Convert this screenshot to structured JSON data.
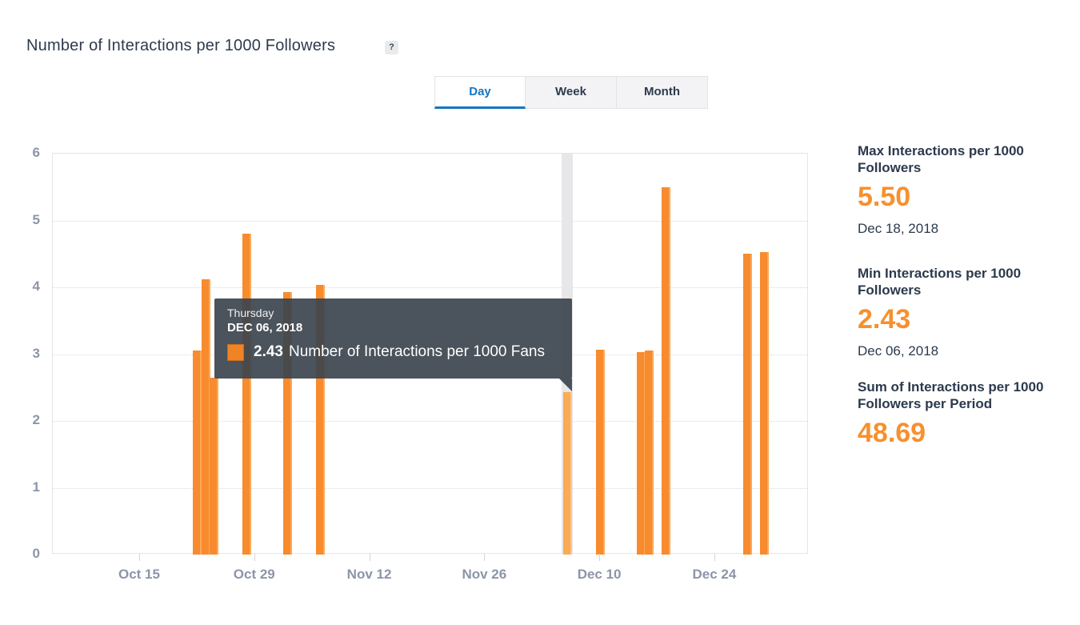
{
  "page": {
    "title": "Number of Interactions per 1000 Followers",
    "help_icon": "?"
  },
  "tabs": [
    {
      "label": "Day",
      "active": true
    },
    {
      "label": "Week",
      "active": false
    },
    {
      "label": "Month",
      "active": false
    }
  ],
  "colors": {
    "bar_orange": "#f78b2e",
    "bar_hover_orange": "#fbaa55",
    "stat_orange": "#f7902d",
    "tab_active_blue": "#1576c2",
    "tooltip_bg": "#3c444e",
    "axis_text": "#8c95a8",
    "heading_text": "#2c3a4d",
    "highlight_band": "#e7e7e9"
  },
  "chart_data": {
    "type": "bar",
    "title": "Number of Interactions per 1000 Followers",
    "xlabel": "",
    "ylabel": "",
    "ylim": [
      0,
      6
    ],
    "y_ticks": [
      0,
      1,
      2,
      3,
      4,
      5,
      6
    ],
    "grid": "horizontal-dotted",
    "legend": "none",
    "x_ticks": [
      {
        "label": "Oct 15",
        "day_index": 0
      },
      {
        "label": "Oct 29",
        "day_index": 14
      },
      {
        "label": "Nov 12",
        "day_index": 28
      },
      {
        "label": "Nov 26",
        "day_index": 42
      },
      {
        "label": "Dec 10",
        "day_index": 56
      },
      {
        "label": "Dec 24",
        "day_index": 70
      }
    ],
    "series": [
      {
        "name": "Number of Interactions per 1000 Fans",
        "points": [
          {
            "date": "Oct 22, 2018",
            "day_index": 7,
            "value": 3.05
          },
          {
            "date": "Oct 23, 2018",
            "day_index": 8,
            "value": 4.12
          },
          {
            "date": "Oct 24, 2018",
            "day_index": 9,
            "value": 2.65
          },
          {
            "date": "Oct 28, 2018",
            "day_index": 13,
            "value": 4.8
          },
          {
            "date": "Nov 02, 2018",
            "day_index": 18,
            "value": 3.93
          },
          {
            "date": "Nov 06, 2018",
            "day_index": 22,
            "value": 4.03
          },
          {
            "date": "Dec 06, 2018",
            "day_index": 52,
            "value": 2.43,
            "hovered": true
          },
          {
            "date": "Dec 10, 2018",
            "day_index": 56,
            "value": 3.07
          },
          {
            "date": "Dec 15, 2018",
            "day_index": 61,
            "value": 3.03
          },
          {
            "date": "Dec 16, 2018",
            "day_index": 62,
            "value": 3.05
          },
          {
            "date": "Dec 18, 2018",
            "day_index": 64,
            "value": 5.5
          },
          {
            "date": "Dec 28, 2018",
            "day_index": 74,
            "value": 4.5
          },
          {
            "date": "Dec 30, 2018",
            "day_index": 76,
            "value": 4.53
          }
        ]
      }
    ],
    "highlighted_point": {
      "date": "Dec 06, 2018",
      "value": 2.43
    }
  },
  "tooltip": {
    "weekday": "Thursday",
    "date": "DEC 06, 2018",
    "value": "2.43",
    "label": "Number of Interactions per 1000 Fans"
  },
  "stats": [
    {
      "title": "Max Interactions per 1000 Followers",
      "value": "5.50",
      "date": "Dec 18, 2018"
    },
    {
      "title": "Min Interactions per 1000 Followers",
      "value": "2.43",
      "date": "Dec 06, 2018"
    },
    {
      "title": "Sum of Interactions per 1000 Followers per Period",
      "value": "48.69",
      "date": ""
    }
  ]
}
